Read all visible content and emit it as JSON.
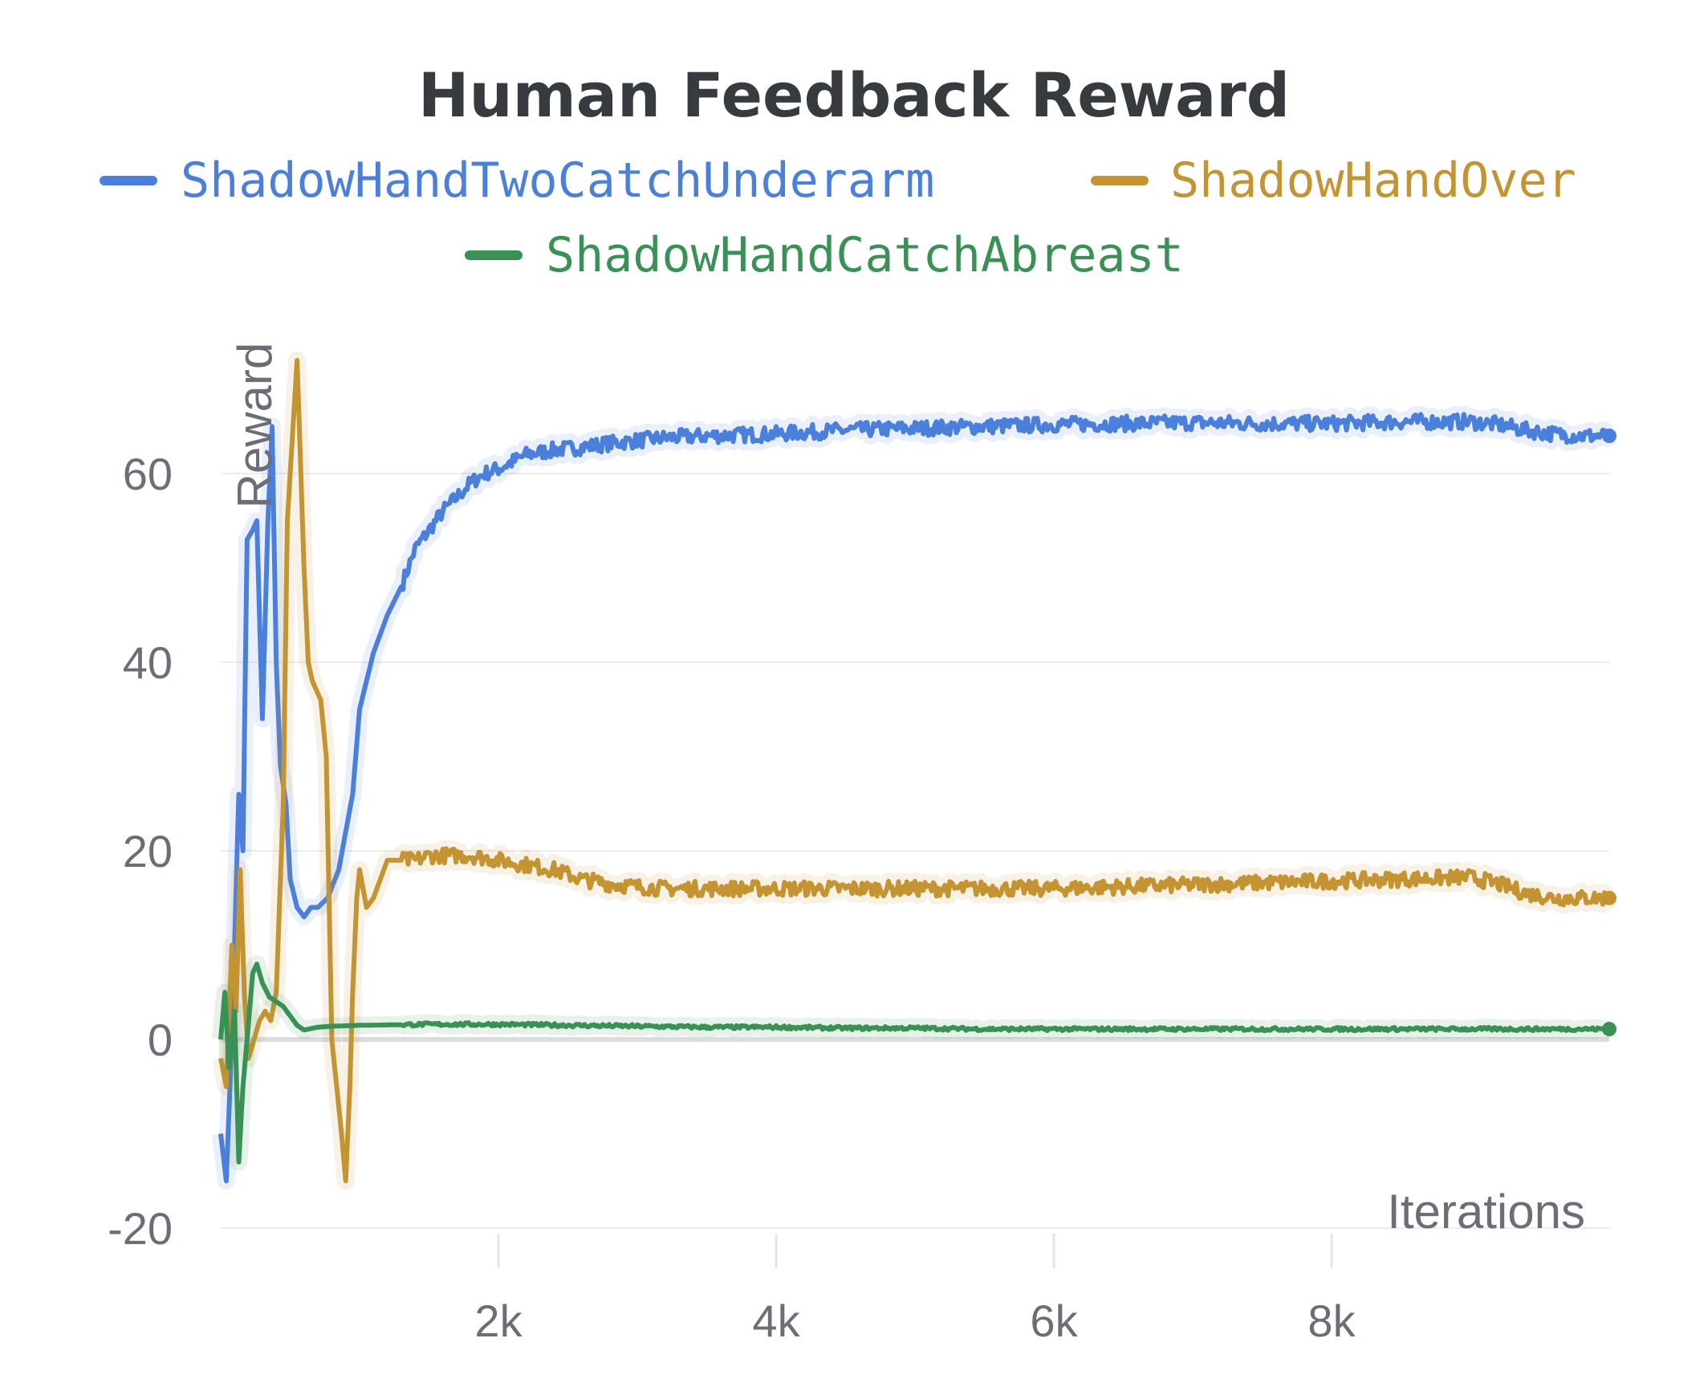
{
  "chart_data": {
    "type": "line",
    "title": "Human Feedback Reward",
    "xlabel": "Iterations",
    "ylabel": "Reward",
    "xlim": [
      0,
      10000
    ],
    "ylim": [
      -20,
      73
    ],
    "xticks": [
      2000,
      4000,
      6000,
      8000
    ],
    "xtick_labels": [
      "2k",
      "4k",
      "6k",
      "8k"
    ],
    "yticks": [
      -20,
      0,
      20,
      40,
      60
    ],
    "ytick_labels": [
      "-20",
      "0",
      "20",
      "40",
      "60"
    ],
    "grid": true,
    "legend_position": "top",
    "series": [
      {
        "name": "ShadowHandTwoCatchUnderarm",
        "color": "#4a7fdc",
        "x": [
          0,
          40,
          80,
          130,
          160,
          190,
          230,
          260,
          300,
          340,
          370,
          400,
          430,
          470,
          500,
          550,
          600,
          650,
          700,
          770,
          850,
          950,
          1000,
          1050,
          1100,
          1200,
          1300,
          1400,
          1500,
          1600,
          1700,
          1800,
          1900,
          2000,
          2200,
          2400,
          2600,
          2800,
          3000,
          3200,
          3500,
          4000,
          4500,
          5000,
          5500,
          6000,
          6500,
          7000,
          7500,
          8000,
          8500,
          9000,
          9200,
          9400,
          9600,
          9800,
          10000
        ],
        "y": [
          -10,
          -15,
          0,
          26,
          20,
          53,
          54,
          55,
          34,
          55,
          65,
          40,
          29,
          25,
          17,
          14,
          13,
          14,
          14,
          15,
          18,
          26,
          35,
          38,
          41,
          45,
          48,
          52,
          54,
          56,
          57.5,
          59,
          60,
          60.5,
          62,
          62.5,
          62.8,
          63.2,
          63.5,
          63.8,
          64,
          64.2,
          64.6,
          64.8,
          65,
          65.2,
          65.3,
          65.4,
          65.3,
          65.3,
          65.5,
          65.5,
          65.2,
          64.6,
          64.2,
          64,
          64
        ]
      },
      {
        "name": "ShadowHandOver",
        "color": "#c59432",
        "x": [
          0,
          40,
          80,
          110,
          140,
          170,
          200,
          240,
          280,
          320,
          360,
          400,
          450,
          480,
          500,
          550,
          600,
          630,
          660,
          690,
          720,
          760,
          800,
          870,
          900,
          930,
          950,
          980,
          1000,
          1050,
          1100,
          1150,
          1200,
          1300,
          1400,
          1500,
          1600,
          1800,
          2000,
          2200,
          2400,
          2600,
          2800,
          3000,
          3200,
          3500,
          4000,
          4500,
          5000,
          5500,
          6000,
          6500,
          7000,
          7500,
          8000,
          8500,
          9000,
          9200,
          9400,
          9600,
          9800,
          10000
        ],
        "y": [
          -2,
          -5,
          10,
          3,
          18,
          5,
          -2,
          0,
          2,
          3,
          2,
          5,
          25,
          55,
          60,
          72,
          50,
          40,
          38,
          37,
          36,
          30,
          0,
          -10,
          -15,
          -5,
          5,
          15,
          18,
          14,
          15,
          17,
          19,
          19,
          19,
          19.5,
          19.5,
          19.5,
          19,
          18.5,
          18,
          17,
          16.5,
          16.2,
          16,
          16,
          16,
          16,
          16,
          16,
          16,
          16.2,
          16.4,
          16.6,
          16.8,
          17,
          17.2,
          16.5,
          15.5,
          15,
          15,
          15
        ]
      },
      {
        "name": "ShadowHandCatchAbreast",
        "color": "#3a9155",
        "x": [
          0,
          30,
          60,
          100,
          130,
          160,
          190,
          230,
          260,
          300,
          350,
          400,
          450,
          500,
          550,
          600,
          700,
          800,
          1000,
          1500,
          2000,
          2500,
          3000,
          3500,
          4000,
          4500,
          5000,
          5500,
          6000,
          6500,
          7000,
          7500,
          8000,
          8500,
          9000,
          9500,
          10000
        ],
        "y": [
          0,
          5,
          -3,
          3,
          -13,
          -5,
          0,
          7,
          8,
          6,
          4.5,
          4,
          3.5,
          2.5,
          1.5,
          1,
          1.3,
          1.4,
          1.5,
          1.6,
          1.6,
          1.5,
          1.4,
          1.3,
          1.3,
          1.2,
          1.2,
          1.1,
          1.1,
          1.1,
          1.1,
          1.1,
          1.1,
          1.1,
          1.1,
          1.1,
          1.1
        ]
      }
    ]
  }
}
